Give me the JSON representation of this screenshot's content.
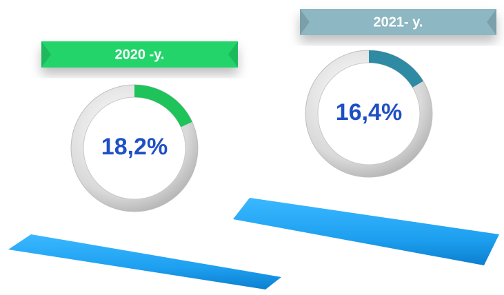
{
  "chart_data": [
    {
      "type": "donut",
      "title": "2020 -y.",
      "values": [
        18.2
      ],
      "value_labels": [
        "18,2%"
      ],
      "color": "#1ec35a",
      "banner_color": "#22d46a"
    },
    {
      "type": "donut",
      "title": "2021- y.",
      "values": [
        16.4
      ],
      "value_labels": [
        "16,4%"
      ],
      "color": "#2f8aa3",
      "banner_color": "#8db7c2"
    }
  ]
}
